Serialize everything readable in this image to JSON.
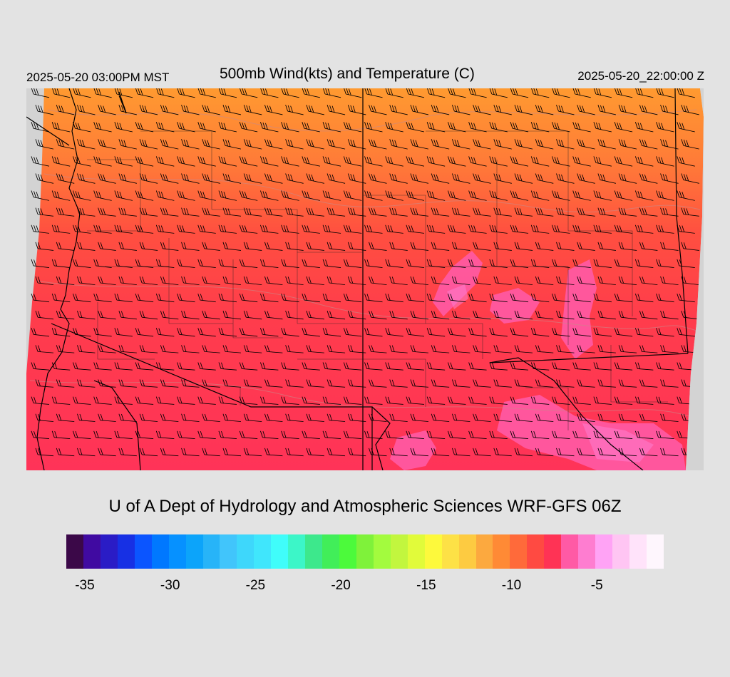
{
  "header": {
    "valid_time_local": "2025-05-20 03:00PM MST",
    "title": "500mb Wind(kts) and Temperature (C)",
    "valid_time_utc": "2025-05-20_22:00:00 Z"
  },
  "map": {
    "field": "500mb temperature with wind barbs",
    "background_color": "#d3d3d3",
    "regions": [
      {
        "name": "north band",
        "temperature_c": -11,
        "color": "#ff8a35"
      },
      {
        "name": "central band",
        "temperature_c": -9,
        "color": "#ff4a42"
      },
      {
        "name": "south band",
        "temperature_c": -8,
        "color": "#ff3355"
      },
      {
        "name": "warm pockets",
        "temperature_c": -6,
        "color": "#ff5aa5"
      }
    ],
    "wind": {
      "flow_direction": "west-southwest",
      "barb_color": "#000000"
    }
  },
  "footer": {
    "credit": "U of A Dept of Hydrology and Atmospheric Sciences WRF-GFS 06Z"
  },
  "legend": {
    "colors": [
      "#3b0848",
      "#400aa1",
      "#2a1cc6",
      "#1730e4",
      "#0b55ff",
      "#0078ff",
      "#0691ff",
      "#0ca4fa",
      "#27b4f8",
      "#41c5fb",
      "#3ed7fb",
      "#40e6fc",
      "#40fdfa",
      "#3cf6c8",
      "#3de88c",
      "#41ee59",
      "#4cfa3b",
      "#7ff23a",
      "#a3fb3e",
      "#c2f63e",
      "#e1fb3a",
      "#fdf93c",
      "#fde146",
      "#fdcb41",
      "#fca93f",
      "#ff8a35",
      "#ff6a3a",
      "#ff4a42",
      "#ff3355",
      "#ff5aa5",
      "#fe7dd0",
      "#ffa3f5",
      "#ffc5f3",
      "#ffe3fa",
      "#fef6fd"
    ],
    "tick_labels": [
      {
        "label": "-35",
        "value": -35
      },
      {
        "label": "-30",
        "value": -30
      },
      {
        "label": "-25",
        "value": -25
      },
      {
        "label": "-20",
        "value": -20
      },
      {
        "label": "-15",
        "value": -15
      },
      {
        "label": "-10",
        "value": -10
      },
      {
        "label": "-5",
        "value": -5
      }
    ],
    "value_min": -36,
    "value_max": -1
  }
}
